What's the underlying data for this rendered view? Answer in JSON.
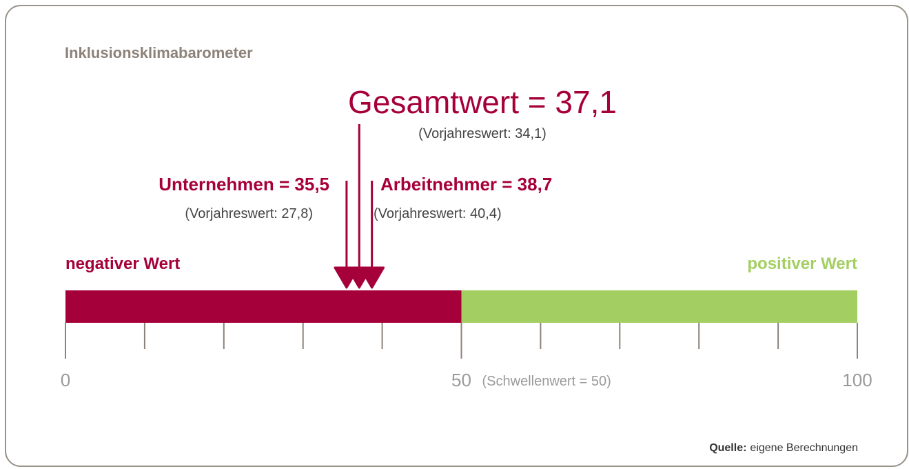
{
  "chart_data": {
    "type": "gauge",
    "title": "Inklusionsklimabarometer",
    "xlim": [
      0,
      100
    ],
    "xticks": [
      0,
      50,
      100
    ],
    "minor_xticks": [
      10,
      20,
      30,
      40,
      60,
      70,
      80,
      90
    ],
    "threshold": 50,
    "threshold_label": "(Schwellenwert = 50)",
    "segments": [
      {
        "name": "negativer Wert",
        "color": "#a6003a",
        "range": [
          0,
          50
        ]
      },
      {
        "name": "positiver Wert",
        "color": "#a3cf62",
        "range": [
          50,
          100
        ]
      }
    ],
    "marker_color": "#a6003a",
    "series": [
      {
        "values": [
          37.1
        ],
        "value_labels": [
          "Gesamtwert = 37,1"
        ],
        "previous_label": "(Vorjahreswert: 34,1)"
      },
      {
        "values": [
          35.5
        ],
        "value_labels": [
          "Unternehmen = 35,5"
        ],
        "previous_label": "(Vorjahreswert: 27,8)"
      },
      {
        "values": [
          38.7
        ],
        "value_labels": [
          "Arbeitnehmer = 38,7"
        ],
        "previous_label": "(Vorjahreswert: 40,4)"
      }
    ],
    "source": {
      "label": "Quelle:",
      "text": "eigene Berechnungen"
    }
  }
}
